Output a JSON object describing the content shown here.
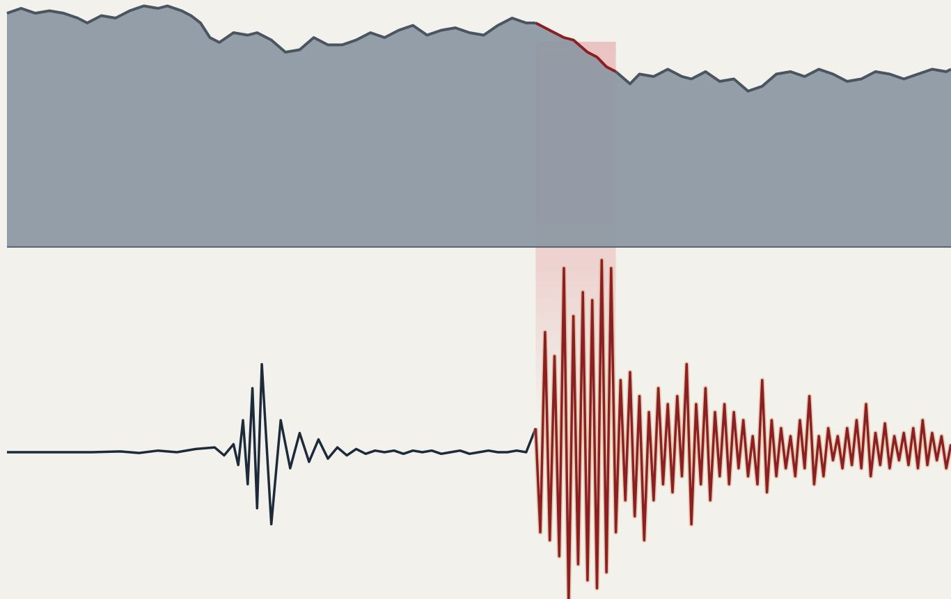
{
  "chart_data": [
    {
      "type": "area",
      "title": "",
      "xlabel": "",
      "ylabel": "",
      "xlim": [
        0,
        100
      ],
      "ylim": [
        0,
        100
      ],
      "grid": false,
      "legend": "none",
      "highlight_range": [
        56,
        64.5
      ],
      "colors": {
        "fill": "#8c97a3",
        "line": "#4a5560",
        "highlight_line": "#8a1f24",
        "highlight_band": "#e8b4b4"
      },
      "x": [
        0,
        1.5,
        3,
        4.5,
        6,
        7.5,
        8.5,
        10,
        11.5,
        13,
        14.5,
        16,
        17,
        18.5,
        19.5,
        20.5,
        21.5,
        22.5,
        24,
        25.5,
        26.5,
        28,
        29.5,
        31,
        32.5,
        34,
        35.5,
        37,
        38.5,
        40,
        41.5,
        43,
        44.5,
        46,
        47.5,
        49,
        50.5,
        52,
        53.5,
        55,
        56,
        57.5,
        59,
        60,
        61.5,
        62.5,
        63.5,
        64.5,
        66,
        67,
        68.5,
        70,
        71.5,
        72.5,
        74,
        75.5,
        77,
        78.5,
        80,
        81.5,
        83,
        84.5,
        86,
        87.5,
        89,
        90.5,
        92,
        93.5,
        95,
        96.5,
        98,
        99.5,
        100
      ],
      "series": [
        {
          "values": [
            96,
            98,
            96,
            97,
            96,
            94,
            92,
            95,
            94,
            97,
            99,
            98,
            99,
            97,
            95,
            92,
            86,
            84,
            88,
            87,
            88,
            85,
            80,
            81,
            86,
            83,
            83,
            85,
            88,
            86,
            89,
            91,
            87,
            89,
            90,
            88,
            87,
            91,
            94,
            92,
            92,
            89,
            86,
            85,
            80,
            78,
            74,
            72,
            67,
            71,
            70,
            73,
            70,
            69,
            72,
            68,
            69,
            64,
            66,
            71,
            72,
            70,
            73,
            71,
            68,
            69,
            72,
            71,
            69,
            71,
            73,
            72,
            73
          ]
        }
      ]
    },
    {
      "type": "line",
      "title": "",
      "xlabel": "",
      "ylabel": "",
      "xlim": [
        0,
        100
      ],
      "ylim": [
        -1,
        1
      ],
      "grid": false,
      "legend": "none",
      "highlight_range": [
        56,
        64.5
      ],
      "colors": {
        "quiet": "#1c2a3a",
        "active": "#8a1f24",
        "halo": "#d9a06a"
      },
      "x": [
        0,
        3,
        6,
        9,
        12,
        14,
        16,
        18,
        20,
        22,
        23,
        24,
        24.5,
        25,
        25.5,
        26,
        26.5,
        27,
        28,
        29,
        30,
        31,
        32,
        33,
        34,
        35,
        36,
        37,
        38,
        39,
        40,
        41,
        42,
        43,
        44,
        45,
        46,
        47,
        48,
        49,
        50,
        51,
        52,
        53,
        54,
        55,
        56,
        56.5,
        57,
        57.5,
        58,
        58.5,
        59,
        59.5,
        60,
        60.5,
        61,
        61.5,
        62,
        62.5,
        63,
        63.5,
        64,
        64.5,
        65,
        65.5,
        66,
        66.5,
        67,
        67.5,
        68,
        68.5,
        69,
        69.5,
        70,
        70.5,
        71,
        71.5,
        72,
        72.5,
        73,
        73.5,
        74,
        74.5,
        75,
        75.5,
        76,
        76.5,
        77,
        77.5,
        78,
        78.5,
        79,
        79.5,
        80,
        80.5,
        81,
        81.5,
        82,
        82.5,
        83,
        83.5,
        84,
        84.5,
        85,
        85.5,
        86,
        86.5,
        87,
        87.5,
        88,
        88.5,
        89,
        89.5,
        90,
        90.5,
        91,
        91.5,
        92,
        92.5,
        93,
        93.5,
        94,
        94.5,
        95,
        95.5,
        96,
        96.5,
        97,
        97.5,
        98,
        98.5,
        99,
        99.5,
        100
      ],
      "series": [
        {
          "name": "",
          "values": [
            0,
            0,
            0,
            0,
            0.005,
            -0.005,
            0.01,
            0,
            0.02,
            0.03,
            -0.02,
            0.05,
            -0.08,
            0.2,
            -0.2,
            0.4,
            -0.35,
            0.55,
            -0.45,
            0.2,
            -0.1,
            0.12,
            -0.06,
            0.08,
            -0.04,
            0.03,
            -0.02,
            0.02,
            -0.01,
            0.01,
            0,
            0.01,
            -0.01,
            0.01,
            0,
            0.01,
            -0.01,
            0,
            0.01,
            -0.01,
            0,
            0.01,
            0,
            0,
            0.01,
            0,
            0.15,
            -0.5,
            0.75,
            -0.55,
            0.6,
            -0.65,
            1.15,
            -0.95,
            0.85,
            -0.7,
            1.0,
            -0.8,
            0.95,
            -0.85,
            1.2,
            -0.75,
            1.15,
            -0.5,
            0.45,
            -0.3,
            0.5,
            -0.4,
            0.35,
            -0.55,
            0.25,
            -0.3,
            0.4,
            -0.2,
            0.3,
            -0.25,
            0.35,
            -0.15,
            0.55,
            -0.45,
            0.3,
            -0.2,
            0.4,
            -0.3,
            0.25,
            -0.15,
            0.3,
            -0.2,
            0.25,
            -0.1,
            0.2,
            -0.15,
            0.1,
            -0.2,
            0.45,
            -0.25,
            0.2,
            -0.15,
            0.15,
            -0.1,
            0.1,
            -0.15,
            0.2,
            -0.1,
            0.35,
            -0.2,
            0.1,
            -0.15,
            0.15,
            -0.05,
            0.1,
            -0.1,
            0.15,
            -0.08,
            0.2,
            -0.1,
            0.3,
            -0.15,
            0.12,
            -0.08,
            0.18,
            -0.1,
            0.1,
            -0.05,
            0.12,
            -0.08,
            0.15,
            -0.1,
            0.2,
            -0.08,
            0.12,
            -0.05,
            0.1,
            -0.1,
            0.05
          ]
        }
      ]
    }
  ]
}
